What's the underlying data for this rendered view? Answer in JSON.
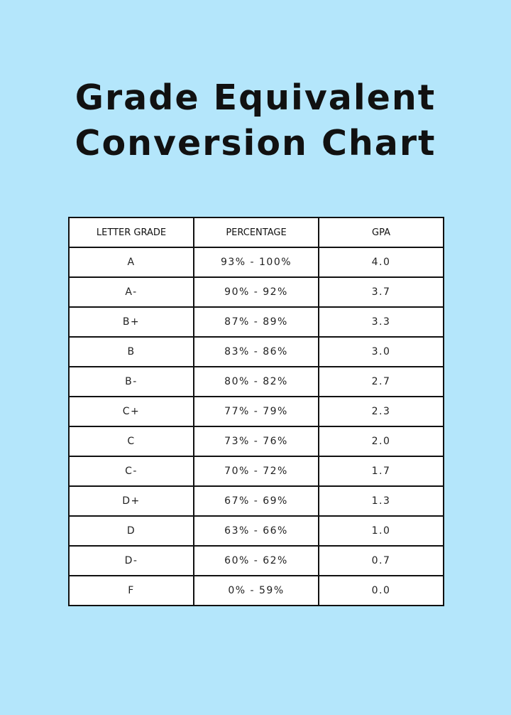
{
  "header": {
    "title_lines": [
      "Grade Equivalent",
      "Conversion Chart"
    ]
  },
  "table": {
    "columns": [
      "LETTER GRADE",
      "PERCENTAGE",
      "GPA"
    ],
    "rows": [
      [
        "A",
        "93% - 100%",
        "4.0"
      ],
      [
        "A-",
        "90% - 92%",
        "3.7"
      ],
      [
        "B+",
        "87% - 89%",
        "3.3"
      ],
      [
        "B",
        "83% - 86%",
        "3.0"
      ],
      [
        "B-",
        "80% - 82%",
        "2.7"
      ],
      [
        "C+",
        "77% - 79%",
        "2.3"
      ],
      [
        "C",
        "73% - 76%",
        "2.0"
      ],
      [
        "C-",
        "70% - 72%",
        "1.7"
      ],
      [
        "D+",
        "67% - 69%",
        "1.3"
      ],
      [
        "D",
        "63% - 66%",
        "1.0"
      ],
      [
        "D-",
        "60% - 62%",
        "0.7"
      ],
      [
        "F",
        "0% - 59%",
        "0.0"
      ]
    ]
  }
}
